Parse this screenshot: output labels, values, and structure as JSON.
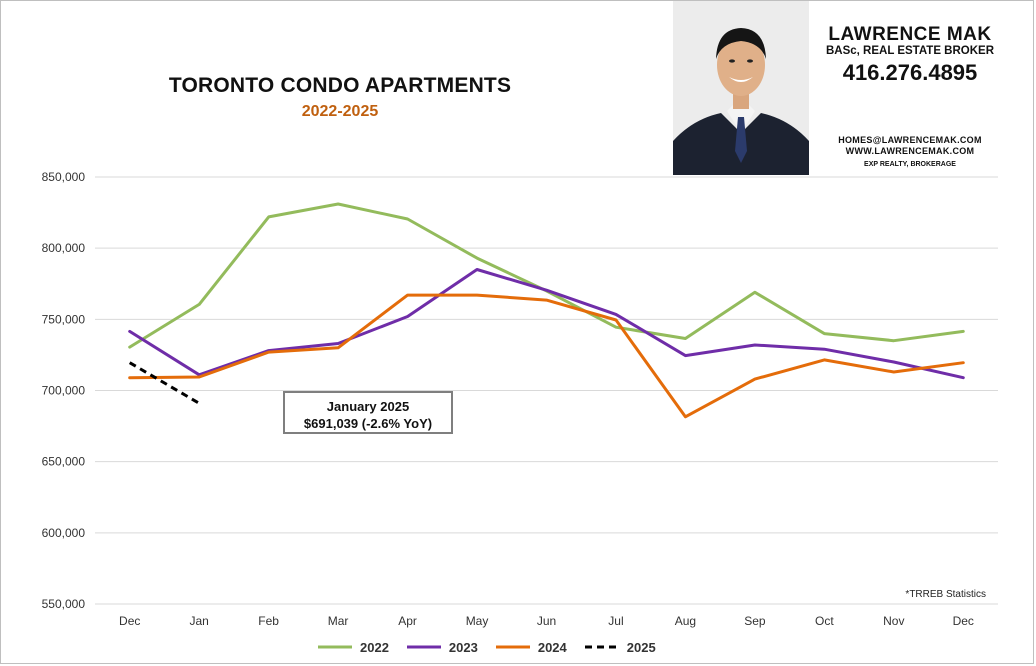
{
  "header": {
    "title": "TORONTO CONDO APARTMENTS",
    "subtitle": "2022-2025"
  },
  "broker": {
    "name": "LAWRENCE MAK",
    "title": "BASc, REAL ESTATE BROKER",
    "phone": "416.276.4895",
    "email": "HOMES@LAWRENCEMAK.COM",
    "website": "WWW.LAWRENCEMAK.COM",
    "brokerage": "EXP REALTY, BROKERAGE"
  },
  "annotation": {
    "line1": "January 2025",
    "line2": "$691,039 (-2.6% YoY)"
  },
  "source_note": "*TRREB Statistics",
  "colors": {
    "2022": "#93bb5c",
    "2023": "#6f2da8",
    "2024": "#e46c0a",
    "2025": "#000000",
    "grid": "#d9d9d9"
  },
  "chart_data": {
    "type": "line",
    "categories": [
      "Dec",
      "Jan",
      "Feb",
      "Mar",
      "Apr",
      "May",
      "Jun",
      "Jul",
      "Aug",
      "Sep",
      "Oct",
      "Nov",
      "Dec"
    ],
    "ylim": [
      550000,
      850000
    ],
    "yticks": [
      550000,
      600000,
      650000,
      700000,
      750000,
      800000,
      850000
    ],
    "ytick_labels": [
      "550,000",
      "600,000",
      "650,000",
      "700,000",
      "750,000",
      "800,000",
      "850,000"
    ],
    "grid": true,
    "legend_position": "bottom",
    "series": [
      {
        "name": "2022",
        "color_key": "2022",
        "dashed": false,
        "values": [
          730500,
          760500,
          822000,
          831000,
          820500,
          793000,
          770000,
          744500,
          736500,
          769000,
          740000,
          735000,
          741500
        ]
      },
      {
        "name": "2023",
        "color_key": "2023",
        "dashed": false,
        "values": [
          741500,
          711000,
          728000,
          733000,
          752000,
          785000,
          770500,
          753500,
          724500,
          732000,
          729000,
          720000,
          709000
        ]
      },
      {
        "name": "2024",
        "color_key": "2024",
        "dashed": false,
        "values": [
          709000,
          709500,
          727000,
          730000,
          767000,
          767000,
          763500,
          749500,
          681500,
          708000,
          721500,
          713000,
          719500
        ]
      },
      {
        "name": "2025",
        "color_key": "2025",
        "dashed": true,
        "values": [
          719500,
          691039,
          null,
          null,
          null,
          null,
          null,
          null,
          null,
          null,
          null,
          null,
          null
        ]
      }
    ]
  }
}
